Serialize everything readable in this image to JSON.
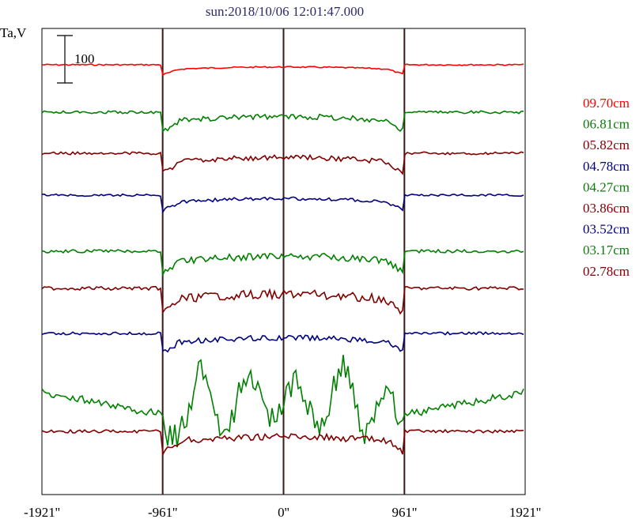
{
  "chart_data": {
    "type": "line",
    "title": "sun:2018/10/06 12:01:47.000",
    "ylabel": "Ta,V",
    "scale_bar_label": "100",
    "x_ticks": [
      "-1921''",
      "-961''",
      "0''",
      "961''",
      "1921''"
    ],
    "x_tick_values": [
      -1921,
      -961,
      0,
      961,
      1921
    ],
    "xlim": [
      -1921,
      1921
    ],
    "vertical_lines_at": [
      -961,
      0,
      961
    ],
    "series": [
      {
        "name": "09.70cm",
        "color": "#ff0000",
        "level": 0
      },
      {
        "name": "06.81cm",
        "color": "#008000",
        "level": 1
      },
      {
        "name": "05.82cm",
        "color": "#800000",
        "level": 2
      },
      {
        "name": "04.78cm",
        "color": "#000080",
        "level": 3
      },
      {
        "name": "04.27cm",
        "color": "#008000",
        "level": 4
      },
      {
        "name": "03.86cm",
        "color": "#800000",
        "level": 5
      },
      {
        "name": "03.52cm",
        "color": "#000080",
        "level": 6
      },
      {
        "name": "03.17cm",
        "color": "#008000",
        "level": 7
      },
      {
        "name": "02.78cm",
        "color": "#800000",
        "level": 8
      }
    ]
  }
}
